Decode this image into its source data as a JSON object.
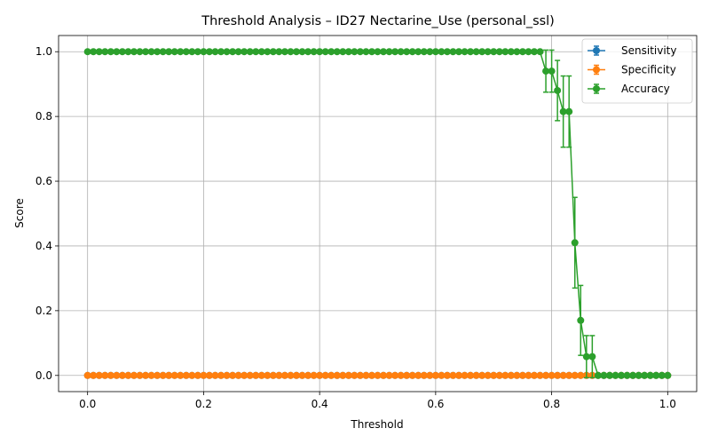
{
  "chart_data": {
    "type": "line",
    "title": "Threshold Analysis – ID27 Nectarine_Use (personal_ssl)",
    "xlabel": "Threshold",
    "ylabel": "Score",
    "xlim": [
      -0.05,
      1.05
    ],
    "ylim": [
      -0.05,
      1.05
    ],
    "x_ticks": [
      0.0,
      0.2,
      0.4,
      0.6,
      0.8,
      1.0
    ],
    "x_tick_labels": [
      "0.0",
      "0.2",
      "0.4",
      "0.6",
      "0.8",
      "1.0"
    ],
    "y_ticks": [
      0.0,
      0.2,
      0.4,
      0.6,
      0.8,
      1.0
    ],
    "y_tick_labels": [
      "0.0",
      "0.2",
      "0.4",
      "0.6",
      "0.8",
      "1.0"
    ],
    "grid": true,
    "legend_position": "top-right",
    "x": [
      0.0,
      0.01,
      0.02,
      0.03,
      0.04,
      0.05,
      0.06,
      0.07,
      0.08,
      0.09,
      0.1,
      0.11,
      0.12,
      0.13,
      0.14,
      0.15,
      0.16,
      0.17,
      0.18,
      0.19,
      0.2,
      0.21,
      0.22,
      0.23,
      0.24,
      0.25,
      0.26,
      0.27,
      0.28,
      0.29,
      0.3,
      0.31,
      0.32,
      0.33,
      0.34,
      0.35,
      0.36,
      0.37,
      0.38,
      0.39,
      0.4,
      0.41,
      0.42,
      0.43,
      0.44,
      0.45,
      0.46,
      0.47,
      0.48,
      0.49,
      0.5,
      0.51,
      0.52,
      0.53,
      0.54,
      0.55,
      0.56,
      0.57,
      0.58,
      0.59,
      0.6,
      0.61,
      0.62,
      0.63,
      0.64,
      0.65,
      0.66,
      0.67,
      0.68,
      0.69,
      0.7,
      0.71,
      0.72,
      0.73,
      0.74,
      0.75,
      0.76,
      0.77,
      0.78,
      0.79,
      0.8,
      0.81,
      0.82,
      0.83,
      0.84,
      0.85,
      0.86,
      0.87,
      0.88,
      0.89,
      0.9,
      0.91,
      0.92,
      0.93,
      0.94,
      0.95,
      0.96,
      0.97,
      0.98,
      0.99,
      1.0
    ],
    "series": [
      {
        "name": "Sensitivity",
        "color": "#1f77b4",
        "values": [
          0,
          0,
          0,
          0,
          0,
          0,
          0,
          0,
          0,
          0,
          0,
          0,
          0,
          0,
          0,
          0,
          0,
          0,
          0,
          0,
          0,
          0,
          0,
          0,
          0,
          0,
          0,
          0,
          0,
          0,
          0,
          0,
          0,
          0,
          0,
          0,
          0,
          0,
          0,
          0,
          0,
          0,
          0,
          0,
          0,
          0,
          0,
          0,
          0,
          0,
          0,
          0,
          0,
          0,
          0,
          0,
          0,
          0,
          0,
          0,
          0,
          0,
          0,
          0,
          0,
          0,
          0,
          0,
          0,
          0,
          0,
          0,
          0,
          0,
          0,
          0,
          0,
          0,
          0,
          0,
          0,
          0,
          0,
          0,
          0,
          0,
          0,
          0,
          0,
          0,
          0,
          0,
          0,
          0,
          0,
          0,
          0,
          0,
          0,
          0,
          0
        ],
        "errors": []
      },
      {
        "name": "Specificity",
        "color": "#ff7f0e",
        "values": [
          0,
          0,
          0,
          0,
          0,
          0,
          0,
          0,
          0,
          0,
          0,
          0,
          0,
          0,
          0,
          0,
          0,
          0,
          0,
          0,
          0,
          0,
          0,
          0,
          0,
          0,
          0,
          0,
          0,
          0,
          0,
          0,
          0,
          0,
          0,
          0,
          0,
          0,
          0,
          0,
          0,
          0,
          0,
          0,
          0,
          0,
          0,
          0,
          0,
          0,
          0,
          0,
          0,
          0,
          0,
          0,
          0,
          0,
          0,
          0,
          0,
          0,
          0,
          0,
          0,
          0,
          0,
          0,
          0,
          0,
          0,
          0,
          0,
          0,
          0,
          0,
          0,
          0,
          0,
          0,
          0,
          0,
          0,
          0,
          0,
          0,
          0,
          0,
          0,
          0,
          0,
          0,
          0,
          0,
          0,
          0,
          0,
          0,
          0,
          0,
          0
        ],
        "errors": []
      },
      {
        "name": "Accuracy",
        "color": "#2ca02c",
        "values": [
          1,
          1,
          1,
          1,
          1,
          1,
          1,
          1,
          1,
          1,
          1,
          1,
          1,
          1,
          1,
          1,
          1,
          1,
          1,
          1,
          1,
          1,
          1,
          1,
          1,
          1,
          1,
          1,
          1,
          1,
          1,
          1,
          1,
          1,
          1,
          1,
          1,
          1,
          1,
          1,
          1,
          1,
          1,
          1,
          1,
          1,
          1,
          1,
          1,
          1,
          1,
          1,
          1,
          1,
          1,
          1,
          1,
          1,
          1,
          1,
          1,
          1,
          1,
          1,
          1,
          1,
          1,
          1,
          1,
          1,
          1,
          1,
          1,
          1,
          1,
          1,
          1,
          1,
          1,
          0.94,
          0.94,
          0.88,
          0.815,
          0.815,
          0.41,
          0.17,
          0.058,
          0.058,
          0,
          0,
          0,
          0,
          0,
          0,
          0,
          0,
          0,
          0,
          0,
          0,
          0
        ],
        "errors": [
          0,
          0,
          0,
          0,
          0,
          0,
          0,
          0,
          0,
          0,
          0,
          0,
          0,
          0,
          0,
          0,
          0,
          0,
          0,
          0,
          0,
          0,
          0,
          0,
          0,
          0,
          0,
          0,
          0,
          0,
          0,
          0,
          0,
          0,
          0,
          0,
          0,
          0,
          0,
          0,
          0,
          0,
          0,
          0,
          0,
          0,
          0,
          0,
          0,
          0,
          0,
          0,
          0,
          0,
          0,
          0,
          0,
          0,
          0,
          0,
          0,
          0,
          0,
          0,
          0,
          0,
          0,
          0,
          0,
          0,
          0,
          0,
          0,
          0,
          0,
          0,
          0,
          0,
          0,
          0.065,
          0.065,
          0.093,
          0.11,
          0.11,
          0.14,
          0.108,
          0.065,
          0.065,
          0,
          0,
          0,
          0,
          0,
          0,
          0,
          0,
          0,
          0,
          0,
          0,
          0
        ]
      }
    ]
  }
}
